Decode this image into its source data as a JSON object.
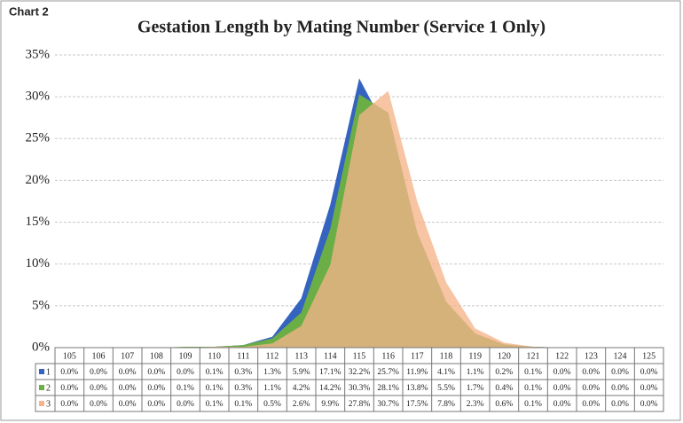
{
  "chart_data": {
    "type": "area",
    "corner_label": "Chart 2",
    "title": "Gestation Length by Mating Number (Service 1 Only)",
    "categories": [
      "105",
      "106",
      "107",
      "108",
      "109",
      "110",
      "111",
      "112",
      "113",
      "114",
      "115",
      "116",
      "117",
      "118",
      "119",
      "120",
      "121",
      "122",
      "123",
      "124",
      "125"
    ],
    "series": [
      {
        "name": "1",
        "color": "#3563c0",
        "values": [
          0.0,
          0.0,
          0.0,
          0.0,
          0.0,
          0.1,
          0.3,
          1.3,
          5.9,
          17.1,
          32.2,
          25.7,
          11.9,
          4.1,
          1.1,
          0.2,
          0.1,
          0.0,
          0.0,
          0.0,
          0.0
        ],
        "value_labels": [
          "0.0%",
          "0.0%",
          "0.0%",
          "0.0%",
          "0.0%",
          "0.1%",
          "0.3%",
          "1.3%",
          "5.9%",
          "17.1%",
          "32.2%",
          "25.7%",
          "11.9%",
          "4.1%",
          "1.1%",
          "0.2%",
          "0.1%",
          "0.0%",
          "0.0%",
          "0.0%",
          "0.0%"
        ]
      },
      {
        "name": "2",
        "color": "#6aae45",
        "values": [
          0.0,
          0.0,
          0.0,
          0.0,
          0.1,
          0.1,
          0.3,
          1.1,
          4.2,
          14.2,
          30.3,
          28.1,
          13.8,
          5.5,
          1.7,
          0.4,
          0.1,
          0.0,
          0.0,
          0.0,
          0.0
        ],
        "value_labels": [
          "0.0%",
          "0.0%",
          "0.0%",
          "0.0%",
          "0.1%",
          "0.1%",
          "0.3%",
          "1.1%",
          "4.2%",
          "14.2%",
          "30.3%",
          "28.1%",
          "13.8%",
          "5.5%",
          "1.7%",
          "0.4%",
          "0.1%",
          "0.0%",
          "0.0%",
          "0.0%",
          "0.0%"
        ]
      },
      {
        "name": "3",
        "color": "#f5b48a",
        "values": [
          0.0,
          0.0,
          0.0,
          0.0,
          0.0,
          0.1,
          0.1,
          0.5,
          2.6,
          9.9,
          27.8,
          30.7,
          17.5,
          7.8,
          2.3,
          0.6,
          0.1,
          0.0,
          0.0,
          0.0,
          0.0
        ],
        "value_labels": [
          "0.0%",
          "0.0%",
          "0.0%",
          "0.0%",
          "0.0%",
          "0.1%",
          "0.1%",
          "0.5%",
          "2.6%",
          "9.9%",
          "27.8%",
          "30.7%",
          "17.5%",
          "7.8%",
          "2.3%",
          "0.6%",
          "0.1%",
          "0.0%",
          "0.0%",
          "0.0%",
          "0.0%"
        ]
      }
    ],
    "ylim": [
      0,
      35
    ],
    "yticks": [
      {
        "value": 0,
        "label": "0%"
      },
      {
        "value": 5,
        "label": "5%"
      },
      {
        "value": 10,
        "label": "10%"
      },
      {
        "value": 15,
        "label": "15%"
      },
      {
        "value": 20,
        "label": "20%"
      },
      {
        "value": 25,
        "label": "25%"
      },
      {
        "value": 30,
        "label": "30%"
      },
      {
        "value": 35,
        "label": "35%"
      }
    ],
    "grid": true
  }
}
